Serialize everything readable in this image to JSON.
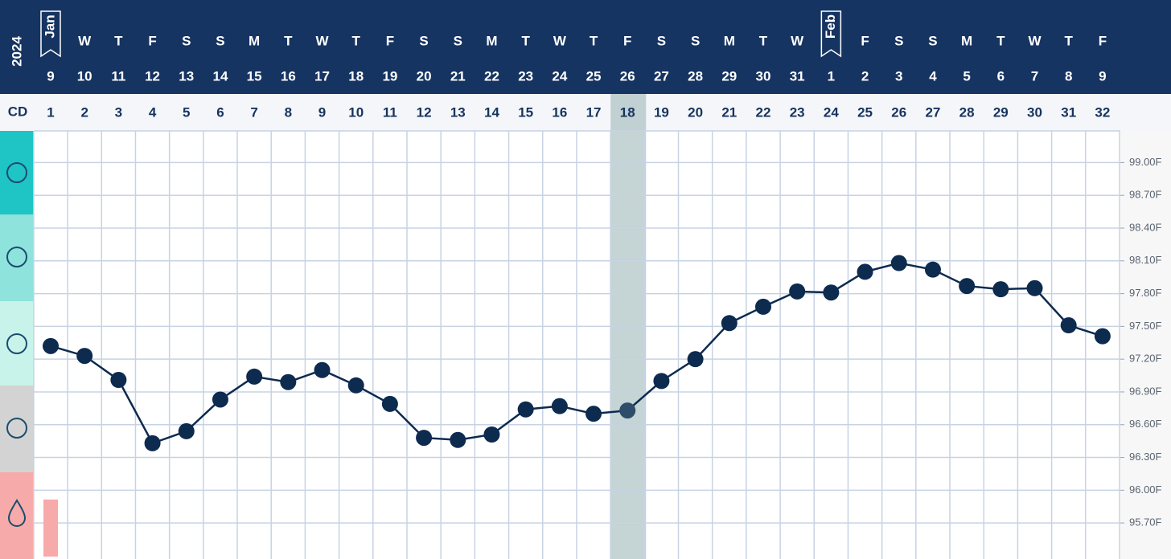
{
  "chart_data": {
    "type": "line",
    "year": "2024",
    "cd_label": "CD",
    "months": [
      "Jan",
      null,
      null,
      null,
      null,
      null,
      null,
      null,
      null,
      null,
      null,
      null,
      null,
      null,
      null,
      null,
      null,
      null,
      null,
      null,
      null,
      null,
      null,
      "Feb",
      null,
      null,
      null,
      null,
      null,
      null,
      null,
      null
    ],
    "weekdays": [
      null,
      "W",
      "T",
      "F",
      "S",
      "S",
      "M",
      "T",
      "W",
      "T",
      "F",
      "S",
      "S",
      "M",
      "T",
      "W",
      "T",
      "F",
      "S",
      "S",
      "M",
      "T",
      "W",
      null,
      "F",
      "S",
      "S",
      "M",
      "T",
      "W",
      "T",
      "F"
    ],
    "dates": [
      9,
      10,
      11,
      12,
      13,
      14,
      15,
      16,
      17,
      18,
      19,
      20,
      21,
      22,
      23,
      24,
      25,
      26,
      27,
      28,
      29,
      30,
      31,
      1,
      2,
      3,
      4,
      5,
      6,
      7,
      8,
      9
    ],
    "categories": [
      1,
      2,
      3,
      4,
      5,
      6,
      7,
      8,
      9,
      10,
      11,
      12,
      13,
      14,
      15,
      16,
      17,
      18,
      19,
      20,
      21,
      22,
      23,
      24,
      25,
      26,
      27,
      28,
      29,
      30,
      31,
      32
    ],
    "highlight_cycle_day": 18,
    "values": [
      97.32,
      97.23,
      97.01,
      96.43,
      96.54,
      96.83,
      97.04,
      96.99,
      97.1,
      96.96,
      96.79,
      96.48,
      96.46,
      96.51,
      96.74,
      96.77,
      96.7,
      96.73,
      97.0,
      97.2,
      97.53,
      97.68,
      97.82,
      97.81,
      98.0,
      98.08,
      98.02,
      97.87,
      97.84,
      97.85,
      97.51,
      97.41
    ],
    "color": "#0d2a4f",
    "ylim": [
      95.37,
      99.29
    ],
    "yticks": [
      {
        "value": 99.0,
        "label": "99.00F"
      },
      {
        "value": 98.7,
        "label": "98.70F"
      },
      {
        "value": 98.4,
        "label": "98.40F"
      },
      {
        "value": 98.1,
        "label": "98.10F"
      },
      {
        "value": 97.8,
        "label": "97.80F"
      },
      {
        "value": 97.5,
        "label": "97.50F"
      },
      {
        "value": 97.2,
        "label": "97.20F"
      },
      {
        "value": 96.9,
        "label": "96.90F"
      },
      {
        "value": 96.6,
        "label": "96.60F"
      },
      {
        "value": 96.3,
        "label": "96.30F"
      },
      {
        "value": 96.0,
        "label": "96.00F"
      },
      {
        "value": 95.7,
        "label": "95.70F"
      }
    ],
    "grid": true
  }
}
